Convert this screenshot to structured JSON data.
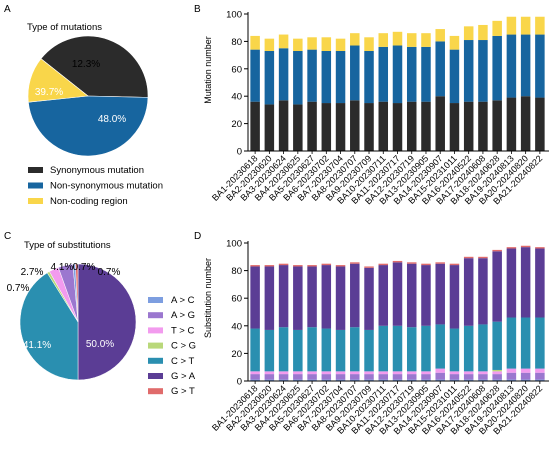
{
  "panels": {
    "A": "A",
    "B": "B",
    "C": "C",
    "D": "D"
  },
  "colors": {
    "synonymous": "#2b2b2b",
    "nonsyn": "#17659f",
    "noncoding": "#f9d64a",
    "AC": "#7d9ee0",
    "AG": "#9b77cf",
    "TC": "#f29bee",
    "CG": "#b9d87a",
    "CT": "#2a8fb0",
    "GA": "#5b3d95",
    "GT": "#e06b6b"
  },
  "chart_data": [
    {
      "type": "pie",
      "title": "Type of mutations",
      "slices": [
        {
          "label": "Synonymous mutation",
          "value": 39.7,
          "value_label": "39.7%",
          "color": "#2b2b2b"
        },
        {
          "label": "Non-synonymous mutation",
          "value": 48.0,
          "value_label": "48.0%",
          "color": "#17659f"
        },
        {
          "label": "Non-coding region",
          "value": 12.3,
          "value_label": "12.3%",
          "color": "#f9d64a"
        }
      ],
      "legend_position": "bottom"
    },
    {
      "type": "bar",
      "stacked": true,
      "ylabel": "Mutation number",
      "ylim": [
        0,
        100
      ],
      "yticks": [
        "0",
        "20",
        "40",
        "60",
        "80",
        "100"
      ],
      "categories": [
        "BA1-20230618",
        "BA2-20230620",
        "BA3-20230624",
        "BA4-20230625",
        "BA5-20230627",
        "BA6-20230702",
        "BA7-20230704",
        "BA8-20230707",
        "BA9-20230709",
        "BA10-20230711",
        "BA11-20230717",
        "BA12-20230719",
        "BA13-20230905",
        "BA14-20230907",
        "BA15-20231011",
        "BA16-20240522",
        "BA17-20240608",
        "BA18-20240628",
        "BA19-20240813",
        "BA20-20240820",
        "BA21-20240822"
      ],
      "series": [
        {
          "name": "Synonymous mutation",
          "color": "#2b2b2b",
          "values": [
            36,
            34,
            37,
            34,
            36,
            35,
            35,
            37,
            35,
            36,
            35,
            36,
            36,
            40,
            35,
            36,
            36,
            37,
            39,
            40,
            39
          ]
        },
        {
          "name": "Non-synonymous mutation",
          "color": "#17659f",
          "values": [
            38,
            39,
            38,
            39,
            38,
            38,
            38,
            40,
            38,
            40,
            42,
            40,
            40,
            40,
            39,
            45,
            45,
            47,
            46,
            45,
            46
          ]
        },
        {
          "name": "Non-coding region",
          "color": "#f9d64a",
          "values": [
            10,
            9,
            10,
            9,
            9,
            10,
            9,
            9,
            10,
            10,
            10,
            10,
            10,
            9,
            10,
            10,
            11,
            11,
            13,
            13,
            13
          ]
        }
      ]
    },
    {
      "type": "pie",
      "title": "Type of substitutions",
      "slices": [
        {
          "label": "A > C",
          "value": 0.7,
          "value_label": "0.7%",
          "color": "#7d9ee0"
        },
        {
          "label": "A > G",
          "value": 4.1,
          "value_label": "4.1%",
          "color": "#9b77cf"
        },
        {
          "label": "T > C",
          "value": 2.7,
          "value_label": "2.7%",
          "color": "#f29bee"
        },
        {
          "label": "C > G",
          "value": 0.7,
          "value_label": "0.7%",
          "color": "#b9d87a"
        },
        {
          "label": "C > T",
          "value": 41.1,
          "value_label": "41.1%",
          "color": "#2a8fb0"
        },
        {
          "label": "G > A",
          "value": 50.0,
          "value_label": "50.0%",
          "color": "#5b3d95"
        },
        {
          "label": "G > T",
          "value": 0.7,
          "value_label": "0.7%",
          "color": "#e06b6b"
        }
      ],
      "legend_position": "right"
    },
    {
      "type": "bar",
      "stacked": true,
      "ylabel": "Substitution number",
      "ylim": [
        0,
        100
      ],
      "yticks": [
        "0",
        "20",
        "40",
        "60",
        "80",
        "100"
      ],
      "categories": [
        "BA1-20230618",
        "BA2-20230620",
        "BA3-20230624",
        "BA4-20230625",
        "BA5-20230627",
        "BA6-20230702",
        "BA7-20230704",
        "BA8-20230707",
        "BA9-20230709",
        "BA10-20230711",
        "BA11-20230717",
        "BA12-20230719",
        "BA13-20230905",
        "BA14-20230907",
        "BA15-20231011",
        "BA16-20240522",
        "BA17-20240608",
        "BA18-20240628",
        "BA19-20240813",
        "BA20-20240820",
        "BA21-20240822"
      ],
      "series": [
        {
          "name": "A > C",
          "color": "#7d9ee0",
          "values": [
            1,
            1,
            1,
            1,
            1,
            1,
            1,
            1,
            1,
            1,
            1,
            1,
            1,
            1,
            1,
            1,
            1,
            1,
            1,
            1,
            1
          ]
        },
        {
          "name": "A > G",
          "color": "#9b77cf",
          "values": [
            4,
            4,
            4,
            4,
            4,
            4,
            4,
            4,
            4,
            4,
            4,
            4,
            4,
            5,
            4,
            4,
            4,
            4,
            5,
            5,
            5
          ]
        },
        {
          "name": "T > C",
          "color": "#f29bee",
          "values": [
            2,
            2,
            2,
            2,
            2,
            2,
            2,
            2,
            2,
            2,
            2,
            2,
            2,
            3,
            2,
            2,
            2,
            2,
            3,
            3,
            3
          ]
        },
        {
          "name": "C > G",
          "color": "#b9d87a",
          "values": [
            0,
            0,
            0,
            0,
            0,
            0,
            0,
            0,
            0,
            0,
            0,
            0,
            0,
            0,
            0,
            0,
            0,
            1,
            0,
            0,
            0
          ]
        },
        {
          "name": "C > T",
          "color": "#2a8fb0",
          "values": [
            31,
            30,
            32,
            30,
            32,
            31,
            30,
            32,
            30,
            33,
            33,
            32,
            33,
            32,
            31,
            33,
            34,
            35,
            37,
            37,
            37
          ]
        },
        {
          "name": "G > A",
          "color": "#5b3d95",
          "values": [
            45,
            46,
            45,
            46,
            44,
            46,
            46,
            46,
            45,
            44,
            46,
            46,
            44,
            44,
            46,
            49,
            48,
            51,
            50,
            51,
            50
          ]
        },
        {
          "name": "G > T",
          "color": "#e06b6b",
          "values": [
            1,
            1,
            1,
            1,
            1,
            1,
            1,
            1,
            1,
            1,
            1,
            1,
            1,
            1,
            1,
            1,
            1,
            1,
            1,
            1,
            1
          ]
        }
      ]
    }
  ]
}
